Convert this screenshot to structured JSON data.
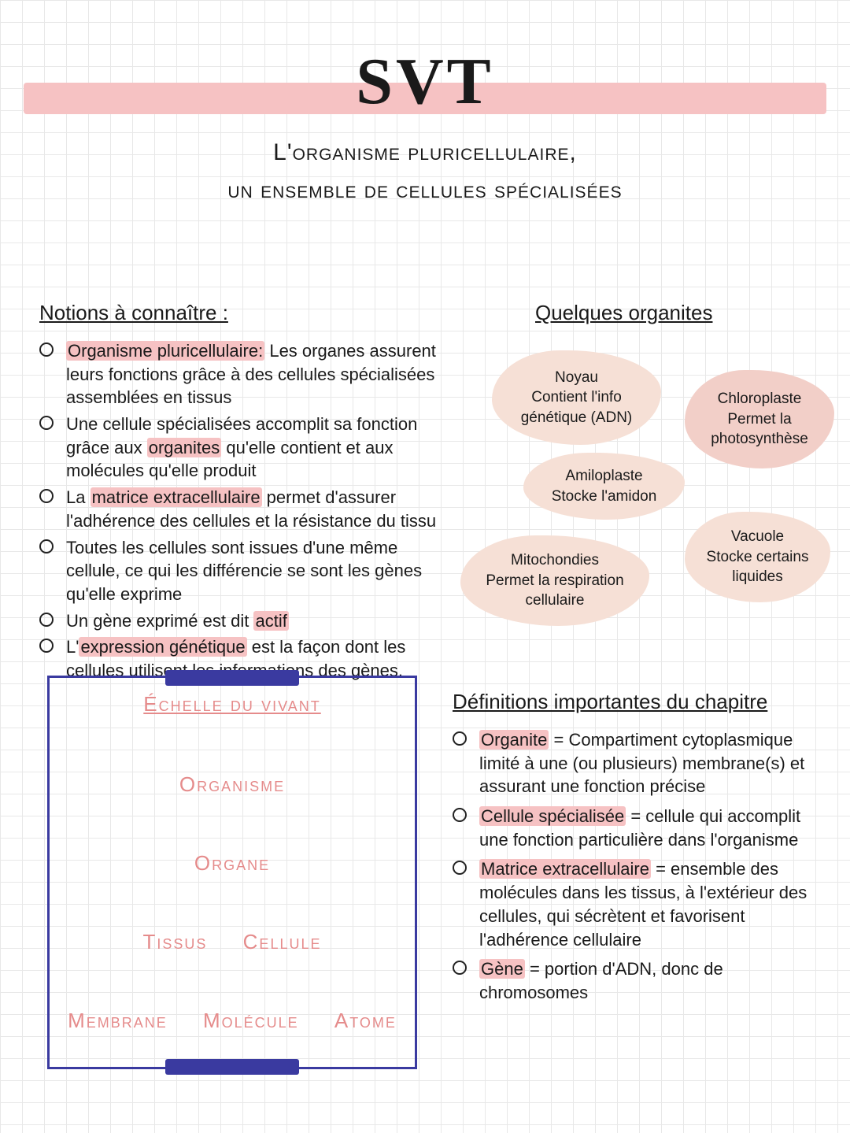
{
  "colors": {
    "grid": "#e8e8e8",
    "highlight": "#f6c2c3",
    "blob_light": "#f6e0d6",
    "blob_dark": "#f2cfc8",
    "frame": "#3a3aa0",
    "accent_text": "#e58b8b",
    "text": "#1a1a1a",
    "background": "#ffffff"
  },
  "typography": {
    "title_fontsize": 84,
    "subtitle_fontsize": 30,
    "heading_fontsize": 26,
    "body_fontsize": 22,
    "blob_fontsize": 19,
    "scale_fontsize": 26
  },
  "title": "SVT",
  "subtitle_line1": "L'organisme pluricellulaire,",
  "subtitle_line2": "un ensemble de cellules spécialisées",
  "notions": {
    "heading": "Notions à connaître :",
    "items": [
      {
        "hl": "Organisme pluricellulaire:",
        "rest": " Les organes assurent leurs fonctions grâce à des cellules spécialisées assemblées en tissus"
      },
      {
        "pre": "Une cellule spécialisées accomplit sa fonction grâce aux ",
        "hl": "organites",
        "rest": " qu'elle contient et aux molécules qu'elle produit"
      },
      {
        "pre": "La ",
        "hl": "matrice extracellulaire",
        "rest": " permet d'assurer l'adhérence des cellules et la résistance du tissu"
      },
      {
        "pre": "Toutes les cellules sont issues d'une même cellule, ce qui les différencie se sont les gènes qu'elle exprime",
        "hl": "",
        "rest": ""
      },
      {
        "pre": "Un gène exprimé est dit ",
        "hl": "actif",
        "rest": ""
      },
      {
        "pre": "L'",
        "hl": "expression génétique",
        "rest": " est la façon dont les cellules utilisent les informations des gènes."
      }
    ]
  },
  "organites": {
    "heading": "Quelques organites",
    "blobs": [
      {
        "title": "Noyau",
        "desc": "Contient l'info génétique (ADN)"
      },
      {
        "title": "Chloroplaste",
        "desc": "Permet la photosynthèse"
      },
      {
        "title": "Amiloplaste",
        "desc": "Stocke l'amidon"
      },
      {
        "title": "Vacuole",
        "desc": "Stocke certains liquides"
      },
      {
        "title": "Mitochondies",
        "desc": "Permet la respiration cellulaire"
      }
    ]
  },
  "scale": {
    "title": "Échelle du vivant",
    "levels": [
      [
        "Organisme"
      ],
      [
        "Organe"
      ],
      [
        "Tissus",
        "Cellule"
      ],
      [
        "Membrane",
        "Molécule",
        "Atome"
      ]
    ]
  },
  "definitions": {
    "heading": "Définitions importantes du chapitre",
    "items": [
      {
        "hl": "Organite",
        "rest": " = Compartiment cytoplasmique limité à une (ou plusieurs) membrane(s) et assurant une fonction précise"
      },
      {
        "hl": "Cellule spécialisée",
        "rest": " = cellule qui accomplit une fonction particulière dans l'organisme"
      },
      {
        "hl": "Matrice extracellulaire",
        "rest": " = ensemble des molécules dans les tissus, à l'extérieur des cellules, qui sécrètent et favorisent l'adhérence cellulaire"
      },
      {
        "hl": "Gène",
        "rest": " = portion d'ADN, donc de chromosomes"
      }
    ]
  }
}
